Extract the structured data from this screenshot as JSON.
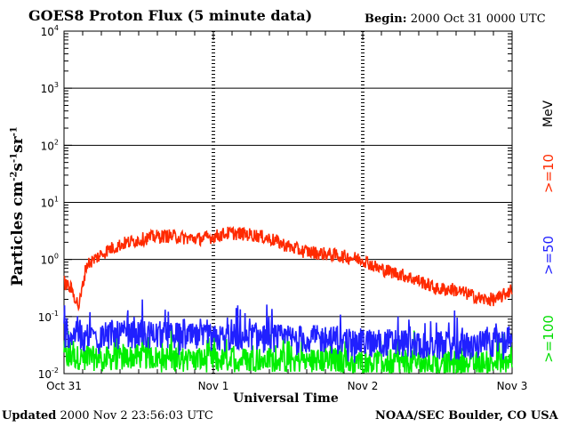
{
  "header": {
    "title": "GOES8 Proton Flux (5 minute data)",
    "begin_label": "Begin:",
    "begin_value": "2000 Oct 31 0000 UTC"
  },
  "footer": {
    "updated_label": "Updated",
    "updated_value": "2000 Nov  2 23:56:03 UTC",
    "credit": "NOAA/SEC Boulder, CO USA"
  },
  "colors": {
    "p10": "#ff2a00",
    "p50": "#2020ff",
    "p100": "#00ee00"
  },
  "chart_data": {
    "type": "line",
    "title": "GOES8 Proton Flux (5 minute data)",
    "xlabel": "Universal Time",
    "ylabel": "Particles cm-2s-1sr-1",
    "yscale": "log",
    "ylim": [
      0.01,
      10000
    ],
    "xlim_days": [
      0,
      3
    ],
    "x_tick_labels": [
      "Oct 31",
      "Nov 1",
      "Nov 2",
      "Nov 3"
    ],
    "y_tick_labels": [
      {
        "base": "10",
        "exp": "-2"
      },
      {
        "base": "10",
        "exp": "-1"
      },
      {
        "base": "10",
        "exp": "0"
      },
      {
        "base": "10",
        "exp": "1"
      },
      {
        "base": "10",
        "exp": "2"
      },
      {
        "base": "10",
        "exp": "3"
      },
      {
        "base": "10",
        "exp": "4"
      }
    ],
    "grid": true,
    "legend": {
      "unit": "MeV",
      "entries": [
        ">=10",
        ">=50",
        ">=100"
      ],
      "placement": "right"
    },
    "series": [
      {
        "name": ">=10",
        "x": [
          0.0,
          0.05,
          0.1,
          0.15,
          0.2,
          0.3,
          0.4,
          0.5,
          0.6,
          0.7,
          0.8,
          0.9,
          1.0,
          1.1,
          1.2,
          1.3,
          1.4,
          1.5,
          1.6,
          1.7,
          1.8,
          1.9,
          2.0,
          2.1,
          2.2,
          2.3,
          2.4,
          2.5,
          2.6,
          2.7,
          2.8,
          2.9,
          3.0
        ],
        "values": [
          0.4,
          0.3,
          0.15,
          0.8,
          1.0,
          1.5,
          1.9,
          2.2,
          2.5,
          2.6,
          2.4,
          2.3,
          2.5,
          2.9,
          2.8,
          2.6,
          2.2,
          1.7,
          1.4,
          1.3,
          1.2,
          1.1,
          1.0,
          0.7,
          0.6,
          0.5,
          0.4,
          0.3,
          0.3,
          0.25,
          0.2,
          0.2,
          0.3
        ]
      },
      {
        "name": ">=50",
        "x": [
          0.0,
          0.25,
          0.5,
          0.75,
          1.0,
          1.25,
          1.5,
          1.75,
          2.0,
          2.25,
          2.5,
          2.75,
          3.0
        ],
        "values": [
          0.05,
          0.045,
          0.05,
          0.045,
          0.04,
          0.045,
          0.04,
          0.04,
          0.035,
          0.035,
          0.03,
          0.03,
          0.04
        ]
      },
      {
        "name": ">=100",
        "x": [
          0.0,
          0.25,
          0.5,
          0.75,
          1.0,
          1.25,
          1.5,
          1.75,
          2.0,
          2.25,
          2.5,
          2.75,
          3.0
        ],
        "values": [
          0.02,
          0.018,
          0.02,
          0.018,
          0.017,
          0.018,
          0.017,
          0.017,
          0.016,
          0.016,
          0.015,
          0.015,
          0.016
        ]
      }
    ]
  }
}
